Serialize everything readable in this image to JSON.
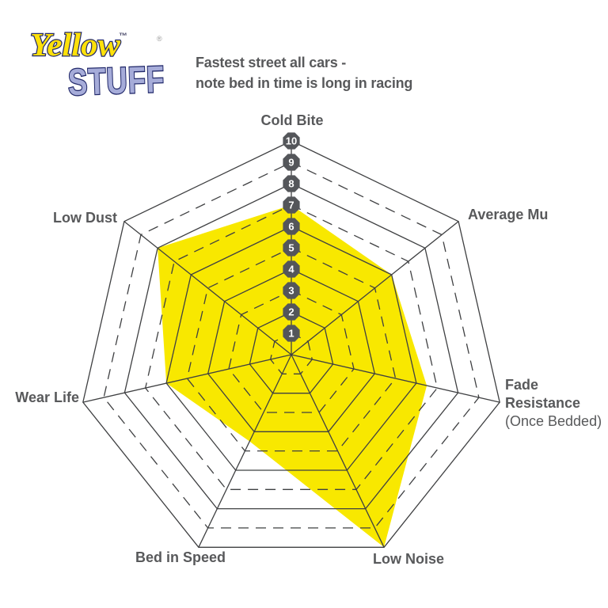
{
  "logo": {
    "line1": "Yellow",
    "trademark": "™",
    "line2": "STUFF",
    "registered": "®"
  },
  "title": {
    "line1": "Fastest street all cars -",
    "line2": "note bed in time is long in racing"
  },
  "colors": {
    "fill": "#F8E800",
    "grid": "#3F4042",
    "label": "#58595B",
    "badge_bg": "#54565A",
    "badge_text": "#FFFFFF",
    "logo_yellow": "#FFE10A",
    "logo_purple": "#A6ACD9",
    "logo_outline": "#232A6B"
  },
  "chart_data": {
    "type": "radar",
    "title": "Fastest street all cars - note bed in time is long in racing",
    "axes": [
      {
        "label": "Cold Bite",
        "value": 7
      },
      {
        "label": "Average Mu",
        "value": 6
      },
      {
        "label": "Fade Resistance",
        "lines": [
          "Fade",
          "Resistance"
        ],
        "sublabel": "(Once Bedded)",
        "value": 6.5
      },
      {
        "label": "Low Noise",
        "value": 10
      },
      {
        "label": "Bed in Speed",
        "value": 4.5
      },
      {
        "label": "Wear Life",
        "value": 6
      },
      {
        "label": "Low Dust",
        "value": 8
      }
    ],
    "scale": {
      "min": 0,
      "max": 10,
      "badges": [
        "1",
        "2",
        "3",
        "4",
        "5",
        "6",
        "7",
        "8",
        "9",
        "10"
      ]
    },
    "grid": {
      "rings": 10,
      "solid_rings": "even",
      "dashed_rings": "odd",
      "spokes": 7
    },
    "legend": null
  }
}
